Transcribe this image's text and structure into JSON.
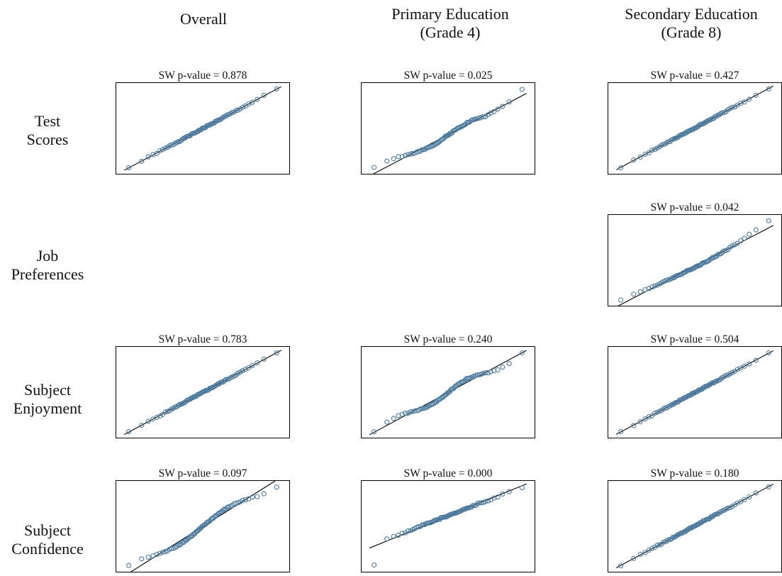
{
  "columns": [
    "Overall",
    "Primary Education\n(Grade 4)",
    "Secondary Education\n(Grade 8)"
  ],
  "rows": [
    "Test\nScores",
    "Job\nPreferences",
    "Subject\nEnjoyment",
    "Subject\nConfidence"
  ],
  "colors": {
    "marker": "#4a7a9e",
    "line": "#000000",
    "frame": "#000000"
  },
  "chart_data": [
    {
      "type": "scatter",
      "row": "Test Scores",
      "column": "Overall",
      "title": "SW p-value = 0.878",
      "seed": 1,
      "shape": "normal"
    },
    {
      "type": "scatter",
      "row": "Test Scores",
      "column": "Primary Education (Grade 4)",
      "title": "SW p-value = 0.025",
      "seed": 2,
      "shape": "plateau"
    },
    {
      "type": "scatter",
      "row": "Test Scores",
      "column": "Secondary Education (Grade 8)",
      "title": "SW p-value = 0.427",
      "seed": 3,
      "shape": "normal"
    },
    {
      "type": "scatter",
      "row": "Job Preferences",
      "column": "Secondary Education (Grade 8)",
      "title": "SW p-value = 0.042",
      "seed": 4,
      "shape": "skew"
    },
    {
      "type": "scatter",
      "row": "Subject Enjoyment",
      "column": "Overall",
      "title": "SW p-value = 0.783",
      "seed": 5,
      "shape": "normal"
    },
    {
      "type": "scatter",
      "row": "Subject Enjoyment",
      "column": "Primary Education (Grade 4)",
      "title": "SW p-value = 0.240",
      "seed": 6,
      "shape": "wave"
    },
    {
      "type": "scatter",
      "row": "Subject Enjoyment",
      "column": "Secondary Education (Grade 8)",
      "title": "SW p-value = 0.504",
      "seed": 7,
      "shape": "normal"
    },
    {
      "type": "scatter",
      "row": "Subject Confidence",
      "column": "Overall",
      "title": "SW p-value = 0.097",
      "seed": 8,
      "shape": "sshape"
    },
    {
      "type": "scatter",
      "row": "Subject Confidence",
      "column": "Primary Education (Grade 4)",
      "title": "SW p-value = 0.000",
      "seed": 9,
      "shape": "flat"
    },
    {
      "type": "scatter",
      "row": "Subject Confidence",
      "column": "Secondary Education (Grade 8)",
      "title": "SW p-value = 0.180",
      "seed": 10,
      "shape": "normal"
    }
  ]
}
